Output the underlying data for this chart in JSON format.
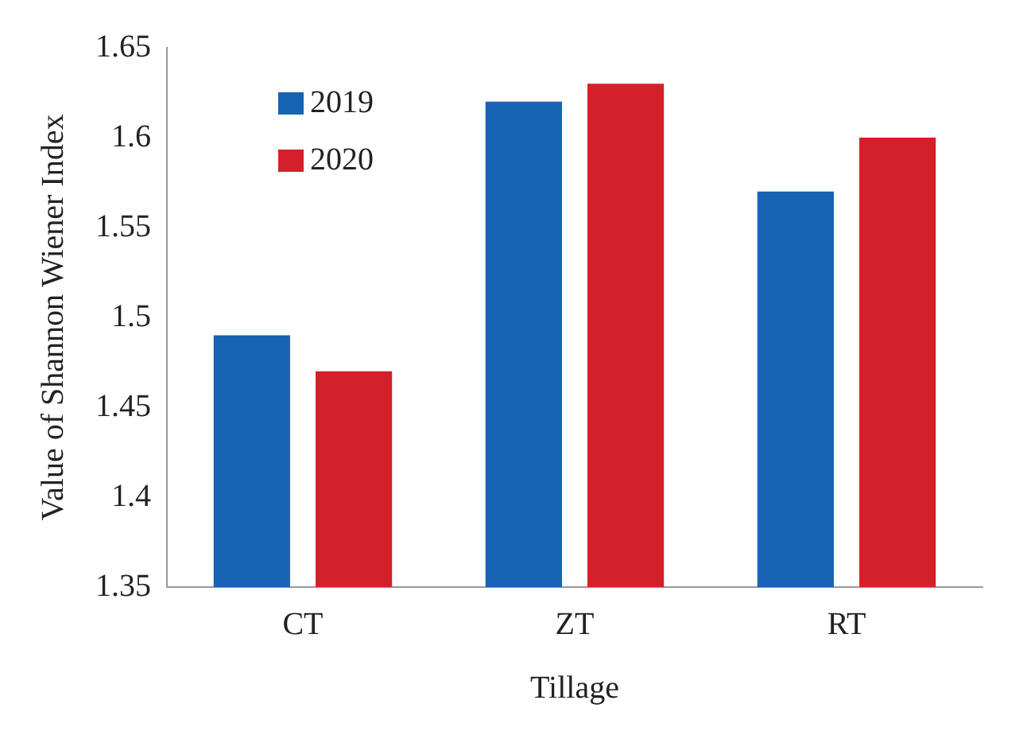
{
  "chart_data": {
    "type": "bar",
    "xlabel": "Tillage",
    "ylabel": "Value of Shannon Wiener Index",
    "categories": [
      "CT",
      "ZT",
      "RT"
    ],
    "series": [
      {
        "name": "2019",
        "color": "#1763b4",
        "values": [
          1.49,
          1.62,
          1.57
        ]
      },
      {
        "name": "2020",
        "color": "#d4202a",
        "values": [
          1.47,
          1.63,
          1.6
        ]
      }
    ],
    "ylim": [
      1.35,
      1.65
    ],
    "yticks": [
      1.35,
      1.4,
      1.45,
      1.5,
      1.55,
      1.6,
      1.65
    ],
    "grid": false,
    "legend": "top left"
  }
}
